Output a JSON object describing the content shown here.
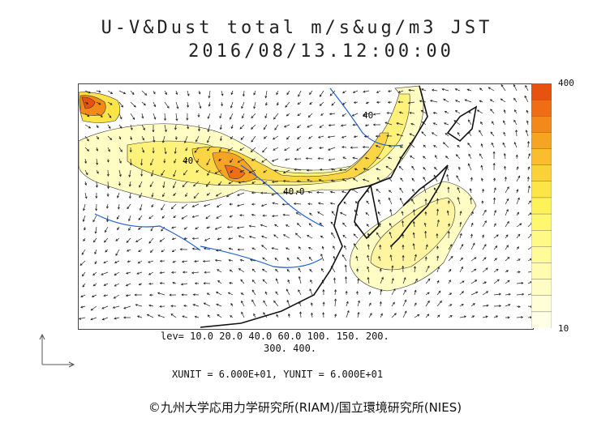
{
  "title": {
    "line1": "U-V&Dust total m/s&ug/m3 JST",
    "line2": "2016/08/13.12:00:00"
  },
  "colorbar": {
    "max_label": "400",
    "min_label": "10",
    "colors": [
      "#e8520e",
      "#ef6d14",
      "#f3891b",
      "#f6a424",
      "#f9bd2e",
      "#fbd13a",
      "#fde548",
      "#fef25a",
      "#fff86e",
      "#fffa85",
      "#fffb9b",
      "#fffcb0",
      "#fffdc4",
      "#fffed6",
      "#fffee6"
    ]
  },
  "levels": {
    "line1": "lev= 10.0 20.0 40.0 60.0 100. 150. 200.",
    "line2": "300. 400."
  },
  "contour_labels": [
    "40",
    "40.0",
    "40"
  ],
  "units": "XUNIT = 6.000E+01, YUNIT = 6.000E+01",
  "credit": "©九州大学応用力学研究所(RIAM)/国立環境研究所(NIES)"
}
